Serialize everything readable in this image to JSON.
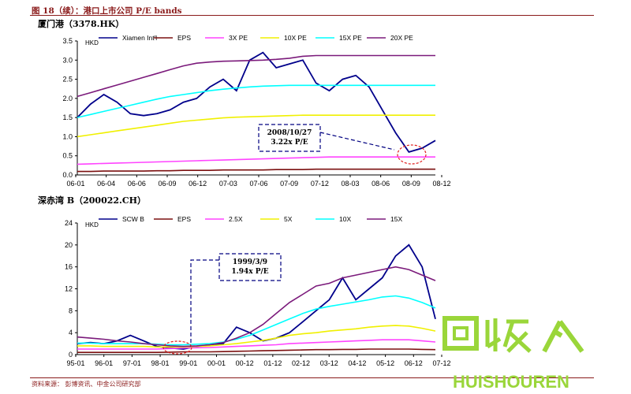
{
  "figure_title": "图 18（续）：港口上市公司 P/E bands",
  "source": "资料来源：  彭博资讯、中金公司研究部",
  "watermark": {
    "text": "HUISHOUREN",
    "logo_chars": "回收"
  },
  "colors": {
    "price": "#00008b",
    "eps": "#7b1010",
    "pe1": "#ff44ff",
    "pe2": "#f0f000",
    "pe3": "#00ffff",
    "pe4": "#7b1a7b",
    "annot": "#000080",
    "circle": "#e02020"
  },
  "chart_data": [
    {
      "type": "line",
      "title": "厦门港（3378.HK）",
      "ylabel": "HKD",
      "ylim": [
        0,
        3.5
      ],
      "yticks": [
        "0.0",
        "0.5",
        "1.0",
        "1.5",
        "2.0",
        "2.5",
        "3.0",
        "3.5"
      ],
      "x_ticks": [
        "06-01",
        "06-04",
        "06-06",
        "06-09",
        "06-12",
        "07-03",
        "07-06",
        "07-09",
        "07-12",
        "08-03",
        "08-06",
        "08-09",
        "08-12"
      ],
      "legend": [
        "Xiamen Int'l",
        "EPS",
        "3X PE",
        "10X PE",
        "15X PE",
        "20X PE"
      ],
      "annotation": {
        "lines": [
          "2008/10/27",
          "3.22x P/E"
        ]
      },
      "series": [
        {
          "name": "Xiamen Int'l",
          "values": [
            1.5,
            1.85,
            2.1,
            1.9,
            1.6,
            1.55,
            1.6,
            1.7,
            1.9,
            2.0,
            2.3,
            2.5,
            2.2,
            3.0,
            3.2,
            2.8,
            2.9,
            3.0,
            2.4,
            2.2,
            2.5,
            2.6,
            2.3,
            1.7,
            1.1,
            0.6,
            0.7,
            0.9
          ]
        },
        {
          "name": "EPS",
          "values": [
            0.09,
            0.09,
            0.1,
            0.1,
            0.1,
            0.1,
            0.11,
            0.11,
            0.12,
            0.12,
            0.12,
            0.13,
            0.13,
            0.13,
            0.13,
            0.14,
            0.14,
            0.14,
            0.15,
            0.15,
            0.15,
            0.15,
            0.15,
            0.15,
            0.15,
            0.15,
            0.15,
            0.15
          ]
        },
        {
          "name": "3X PE",
          "values": [
            0.28,
            0.29,
            0.3,
            0.31,
            0.32,
            0.33,
            0.34,
            0.35,
            0.36,
            0.37,
            0.38,
            0.39,
            0.4,
            0.41,
            0.42,
            0.43,
            0.44,
            0.45,
            0.46,
            0.47,
            0.47,
            0.47,
            0.47,
            0.47,
            0.47,
            0.47,
            0.47,
            0.47
          ]
        },
        {
          "name": "10X PE",
          "values": [
            1.0,
            1.05,
            1.1,
            1.15,
            1.2,
            1.25,
            1.3,
            1.35,
            1.4,
            1.43,
            1.46,
            1.49,
            1.51,
            1.52,
            1.53,
            1.54,
            1.55,
            1.56,
            1.56,
            1.56,
            1.56,
            1.56,
            1.56,
            1.56,
            1.56,
            1.56,
            1.56,
            1.56
          ]
        },
        {
          "name": "15X PE",
          "values": [
            1.5,
            1.58,
            1.66,
            1.74,
            1.82,
            1.9,
            1.98,
            2.05,
            2.1,
            2.15,
            2.2,
            2.24,
            2.27,
            2.3,
            2.32,
            2.33,
            2.34,
            2.34,
            2.34,
            2.34,
            2.34,
            2.34,
            2.34,
            2.34,
            2.34,
            2.34,
            2.34,
            2.34
          ]
        },
        {
          "name": "20X PE",
          "values": [
            2.05,
            2.15,
            2.25,
            2.35,
            2.45,
            2.55,
            2.65,
            2.75,
            2.85,
            2.92,
            2.95,
            2.97,
            2.98,
            2.99,
            3.0,
            3.02,
            3.05,
            3.1,
            3.12,
            3.12,
            3.12,
            3.12,
            3.12,
            3.12,
            3.12,
            3.12,
            3.12,
            3.12
          ]
        }
      ]
    },
    {
      "type": "line",
      "title": "深赤湾 B（200022.CH）",
      "ylabel": "HKD",
      "ylim": [
        0,
        24
      ],
      "yticks": [
        "0",
        "4",
        "8",
        "12",
        "16",
        "20",
        "24"
      ],
      "x_ticks": [
        "95-01",
        "96-01",
        "97-01",
        "98-01",
        "99-01",
        "00-01",
        "00-12",
        "01-12",
        "02-12",
        "03-12",
        "04-12",
        "05-12",
        "06-12",
        "07-12"
      ],
      "legend": [
        "SCW B",
        "EPS",
        "2.5X",
        "5X",
        "10X",
        "15X"
      ],
      "annotation": {
        "lines": [
          "1999/3/9",
          "1.94x P/E"
        ]
      },
      "series": [
        {
          "name": "SCW B",
          "values": [
            2.0,
            2.2,
            2.0,
            2.5,
            3.5,
            2.5,
            1.5,
            1.2,
            1.0,
            1.5,
            1.8,
            2.0,
            5.0,
            4.0,
            2.5,
            3.0,
            4.0,
            6.0,
            8.0,
            10.0,
            14.0,
            10.0,
            12.0,
            14.0,
            18.0,
            20.0,
            16.0,
            6.5
          ]
        },
        {
          "name": "EPS",
          "values": [
            0.4,
            0.4,
            0.4,
            0.4,
            0.4,
            0.4,
            0.4,
            0.45,
            0.5,
            0.5,
            0.5,
            0.55,
            0.6,
            0.65,
            0.7,
            0.75,
            0.8,
            0.85,
            0.9,
            0.9,
            0.95,
            0.95,
            1.0,
            1.0,
            1.0,
            1.0,
            0.95,
            0.9
          ]
        },
        {
          "name": "2.5X",
          "values": [
            1.0,
            1.0,
            1.0,
            1.0,
            1.0,
            1.0,
            1.0,
            1.1,
            1.2,
            1.25,
            1.3,
            1.4,
            1.5,
            1.6,
            1.7,
            1.8,
            2.0,
            2.1,
            2.2,
            2.3,
            2.4,
            2.5,
            2.6,
            2.7,
            2.7,
            2.7,
            2.5,
            2.3
          ]
        },
        {
          "name": "5X",
          "values": [
            1.6,
            1.6,
            1.5,
            1.5,
            1.5,
            1.5,
            1.4,
            1.4,
            1.4,
            1.5,
            1.6,
            1.8,
            2.0,
            2.3,
            2.6,
            3.0,
            3.5,
            3.8,
            4.0,
            4.3,
            4.5,
            4.7,
            5.0,
            5.2,
            5.3,
            5.2,
            4.8,
            4.3
          ]
        },
        {
          "name": "10X",
          "values": [
            2.1,
            2.1,
            2.0,
            2.0,
            2.0,
            2.0,
            1.9,
            1.8,
            1.8,
            1.9,
            2.0,
            2.3,
            2.8,
            3.5,
            4.5,
            5.5,
            6.5,
            7.5,
            8.3,
            8.8,
            9.2,
            9.6,
            10.0,
            10.5,
            10.7,
            10.3,
            9.5,
            8.5
          ]
        },
        {
          "name": "15X",
          "values": [
            3.2,
            3.0,
            2.8,
            2.5,
            2.3,
            2.0,
            1.8,
            1.6,
            1.5,
            1.6,
            1.8,
            2.2,
            3.0,
            4.0,
            5.5,
            7.5,
            9.5,
            11.0,
            12.5,
            13.0,
            14.0,
            14.5,
            15.0,
            15.5,
            16.0,
            15.5,
            14.5,
            13.5
          ]
        }
      ]
    }
  ]
}
